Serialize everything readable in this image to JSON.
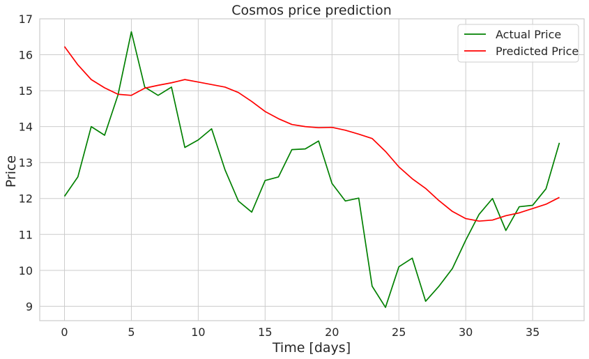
{
  "chart_data": {
    "type": "line",
    "title": "Cosmos price prediction",
    "xlabel": "Time [days]",
    "ylabel": "Price",
    "xlim": [
      -1.85,
      38.85
    ],
    "ylim": [
      8.6,
      17.0
    ],
    "xticks": [
      0,
      5,
      10,
      15,
      20,
      25,
      30,
      35
    ],
    "yticks": [
      9,
      10,
      11,
      12,
      13,
      14,
      15,
      16,
      17
    ],
    "grid": true,
    "legend_position": "top-right",
    "x": [
      0,
      1,
      2,
      3,
      4,
      5,
      6,
      7,
      8,
      9,
      10,
      11,
      12,
      13,
      14,
      15,
      16,
      17,
      18,
      19,
      20,
      21,
      22,
      23,
      24,
      25,
      26,
      27,
      28,
      29,
      30,
      31,
      32,
      33,
      34,
      35,
      36,
      37
    ],
    "series": [
      {
        "name": "Actual Price",
        "color": "#008000",
        "values": [
          12.06,
          12.6,
          14.0,
          13.76,
          14.88,
          16.64,
          15.1,
          14.87,
          15.1,
          13.42,
          13.63,
          13.94,
          12.8,
          11.93,
          11.62,
          12.5,
          12.6,
          13.36,
          13.38,
          13.6,
          12.42,
          11.93,
          12.01,
          9.56,
          8.97,
          10.1,
          10.34,
          9.14,
          9.56,
          10.05,
          10.84,
          11.56,
          12.0,
          11.11,
          11.77,
          11.81,
          12.27,
          13.55
        ]
      },
      {
        "name": "Predicted Price",
        "color": "#ff0000",
        "values": [
          16.23,
          15.72,
          15.31,
          15.08,
          14.9,
          14.87,
          15.07,
          15.15,
          15.22,
          15.31,
          15.24,
          15.17,
          15.1,
          14.95,
          14.7,
          14.42,
          14.22,
          14.06,
          14.0,
          13.97,
          13.98,
          13.9,
          13.79,
          13.67,
          13.31,
          12.88,
          12.55,
          12.28,
          11.94,
          11.64,
          11.44,
          11.37,
          11.4,
          11.52,
          11.6,
          11.72,
          11.84,
          12.03
        ]
      }
    ]
  }
}
